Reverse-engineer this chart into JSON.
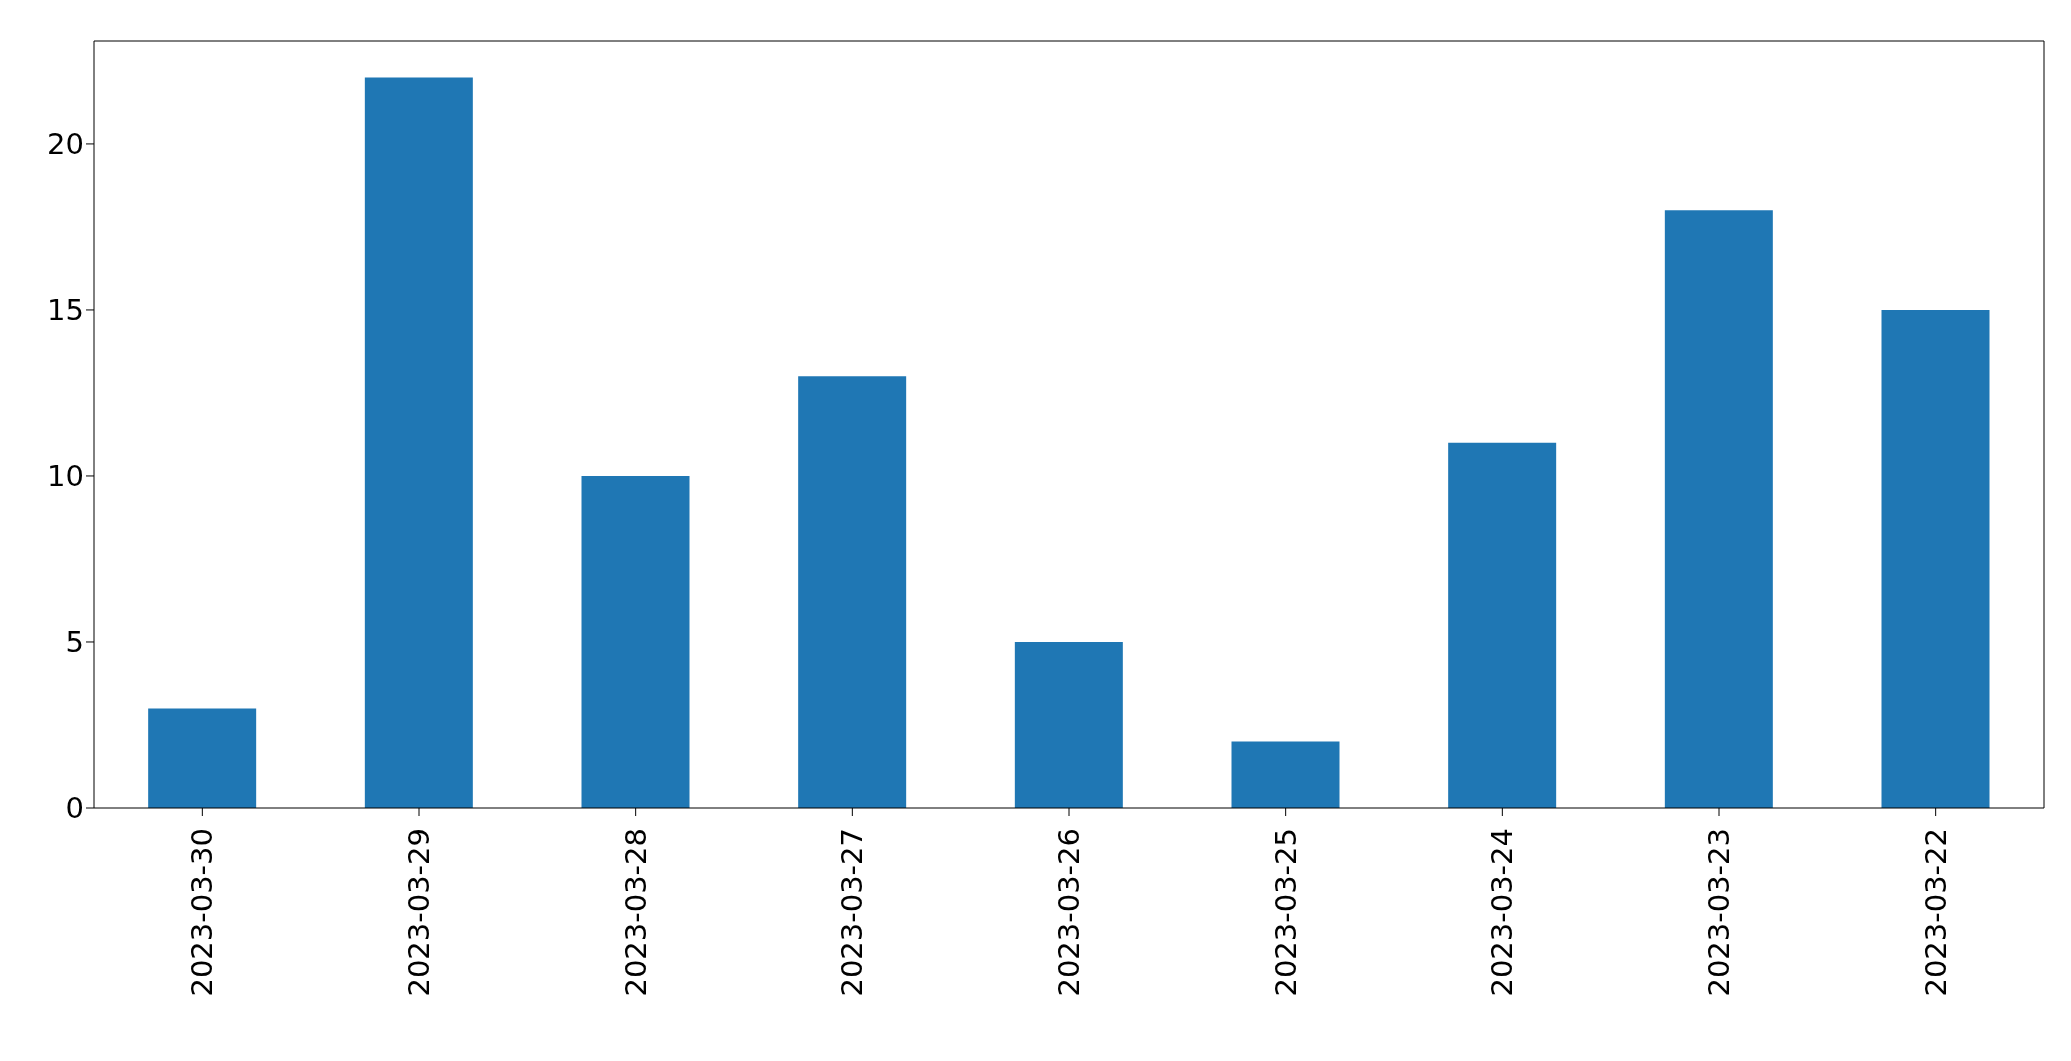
{
  "chart_data": {
    "type": "bar",
    "categories": [
      "2023-03-30",
      "2023-03-29",
      "2023-03-28",
      "2023-03-27",
      "2023-03-26",
      "2023-03-25",
      "2023-03-24",
      "2023-03-23",
      "2023-03-22"
    ],
    "values": [
      3,
      22,
      10,
      13,
      5,
      2,
      11,
      18,
      15
    ],
    "color": "#1f77b4",
    "ylim": [
      0,
      23.1
    ],
    "yticks": [
      0,
      5,
      10,
      15,
      20
    ],
    "grid": false,
    "legend": false
  }
}
